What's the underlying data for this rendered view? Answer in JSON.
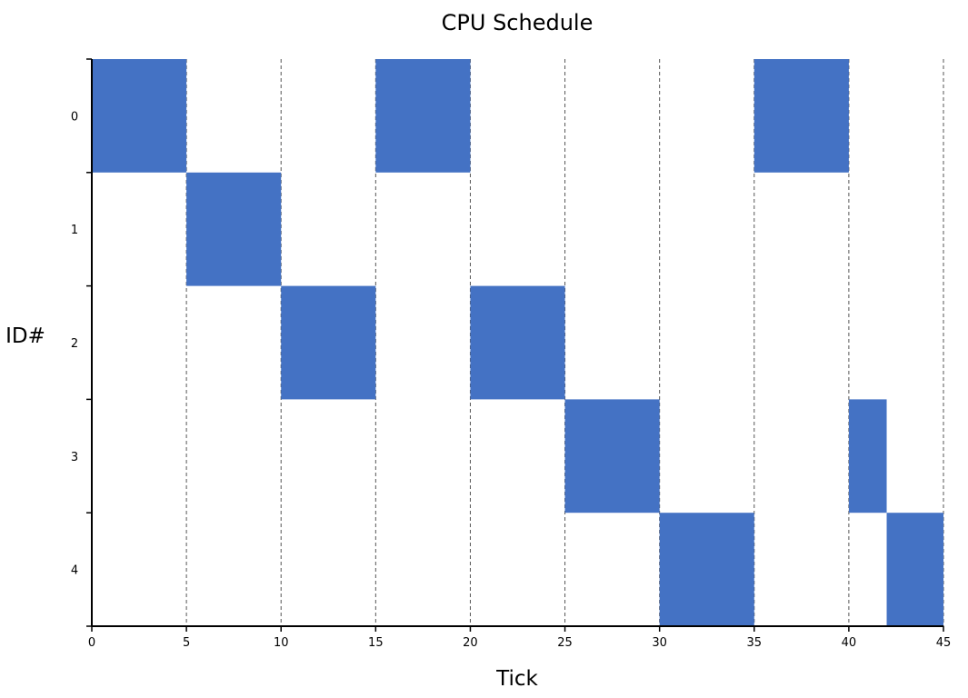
{
  "chart_data": {
    "type": "gantt",
    "title": "CPU Schedule",
    "xlabel": "Tick",
    "ylabel": "ID#",
    "xlim": [
      0,
      45
    ],
    "xticks": [
      0,
      5,
      10,
      15,
      20,
      25,
      30,
      35,
      40,
      45
    ],
    "categories": [
      "0",
      "1",
      "2",
      "3",
      "4"
    ],
    "grid": "vertical-dashed",
    "bar_color": "#4472C4",
    "segments": [
      {
        "id": 0,
        "start": 0,
        "end": 5
      },
      {
        "id": 1,
        "start": 5,
        "end": 10
      },
      {
        "id": 2,
        "start": 10,
        "end": 15
      },
      {
        "id": 0,
        "start": 15,
        "end": 20
      },
      {
        "id": 2,
        "start": 20,
        "end": 25
      },
      {
        "id": 3,
        "start": 25,
        "end": 30
      },
      {
        "id": 4,
        "start": 30,
        "end": 35
      },
      {
        "id": 0,
        "start": 35,
        "end": 40
      },
      {
        "id": 3,
        "start": 40,
        "end": 42
      },
      {
        "id": 4,
        "start": 42,
        "end": 45
      }
    ]
  }
}
